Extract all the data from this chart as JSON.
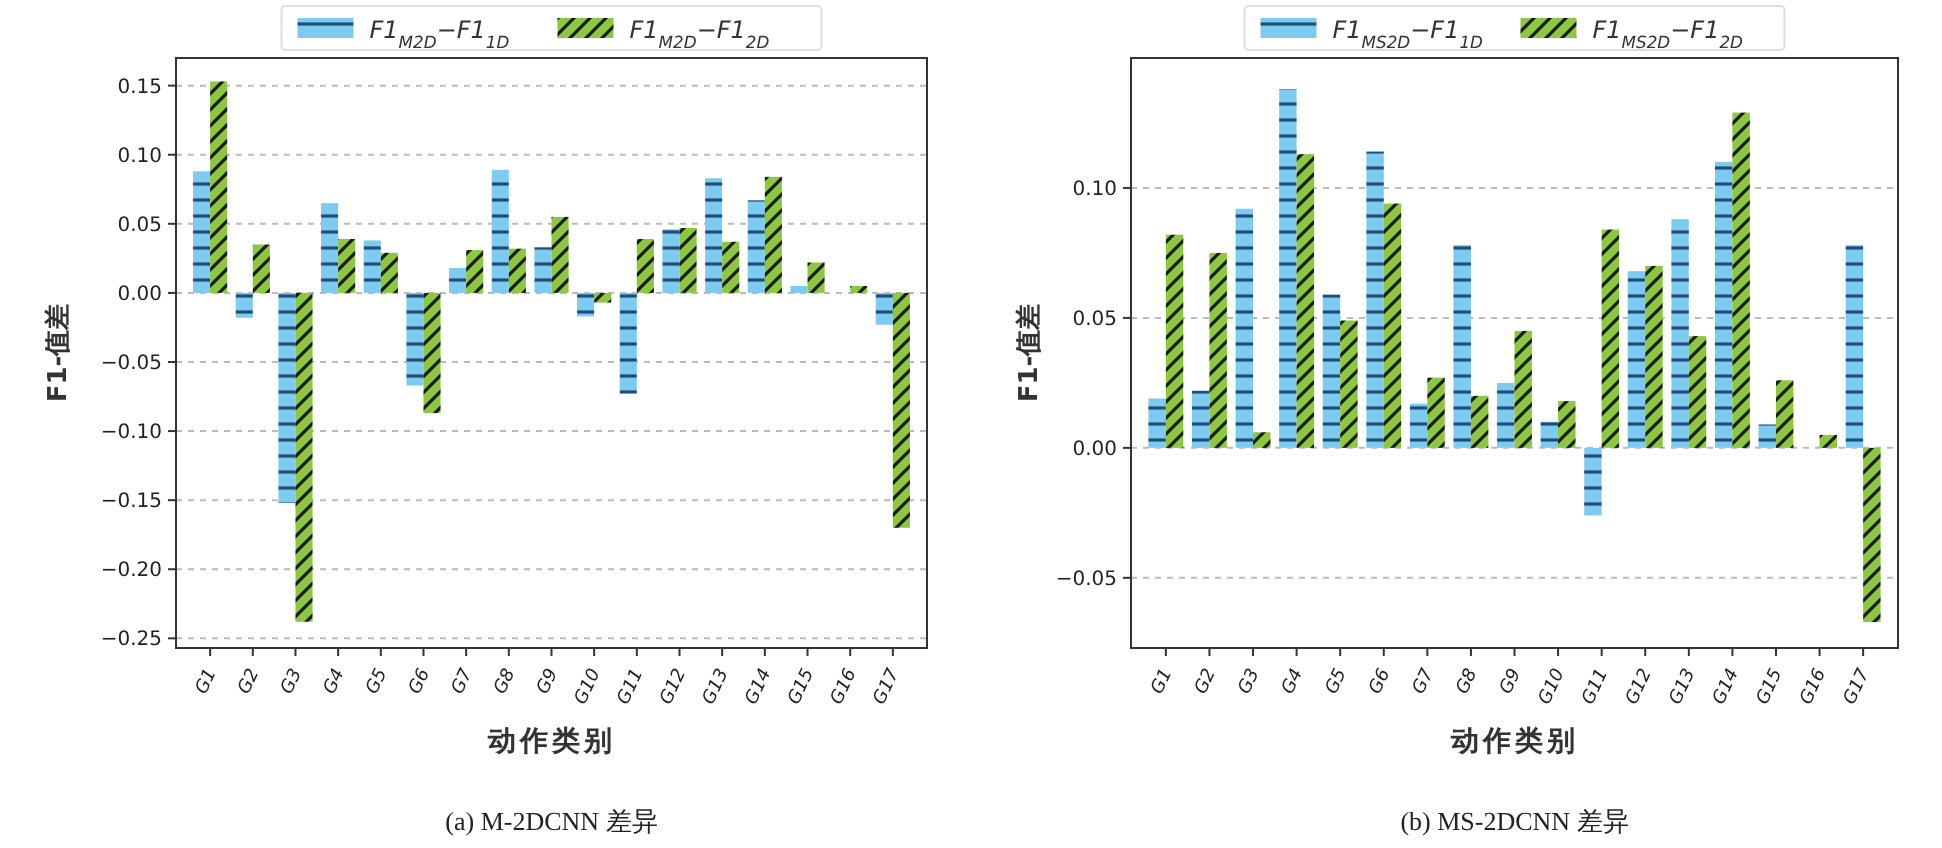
{
  "chart_data": [
    {
      "type": "bar",
      "xlabel": "动作类别",
      "ylabel": "F1-值差",
      "legend": "top",
      "grid": "y",
      "categories": [
        "G1",
        "G2",
        "G3",
        "G4",
        "G5",
        "G6",
        "G7",
        "G8",
        "G9",
        "G10",
        "G11",
        "G12",
        "G13",
        "G14",
        "G15",
        "G16",
        "G17"
      ],
      "series": [
        {
          "name": "F1$_{M2D}$−F1$_{1D}$",
          "color": "#7ecbf2",
          "values": [
            0.088,
            -0.018,
            -0.152,
            0.065,
            0.038,
            -0.067,
            0.018,
            0.089,
            0.033,
            -0.017,
            -0.073,
            0.046,
            0.083,
            0.067,
            0.005,
            0.0,
            -0.023
          ]
        },
        {
          "name": "F1$_{M2D}$−F1$_{2D}$",
          "color": "#8dc63f",
          "values": [
            0.153,
            0.035,
            -0.238,
            0.039,
            0.029,
            -0.087,
            0.031,
            0.032,
            0.055,
            -0.007,
            0.039,
            0.047,
            0.037,
            0.084,
            0.022,
            0.005,
            -0.17
          ]
        }
      ],
      "ylim": [
        -0.257,
        0.17
      ],
      "yticks": [
        {
          "value": -0.25,
          "label": "−0.25"
        },
        {
          "value": -0.2,
          "label": "−0.20"
        },
        {
          "value": -0.15,
          "label": "−0.15"
        },
        {
          "value": -0.1,
          "label": "−0.10"
        },
        {
          "value": -0.05,
          "label": "−0.05"
        },
        {
          "value": 0,
          "label": "0.00"
        },
        {
          "value": 0.05,
          "label": "0.05"
        },
        {
          "value": 0.1,
          "label": "0.10"
        },
        {
          "value": 0.15,
          "label": "0.15"
        }
      ],
      "annotations": [
        "(a) M-2DCNN 差异"
      ]
    },
    {
      "type": "bar",
      "xlabel": "动作类别",
      "ylabel": "F1-值差",
      "legend": "top",
      "grid": "y",
      "categories": [
        "G1",
        "G2",
        "G3",
        "G4",
        "G5",
        "G6",
        "G7",
        "G8",
        "G9",
        "G10",
        "G11",
        "G12",
        "G13",
        "G14",
        "G15",
        "G16",
        "G17"
      ],
      "series": [
        {
          "name": "F1$_{MS2D}$−F1$_{1D}$",
          "color": "#7ecbf2",
          "values": [
            0.019,
            0.022,
            0.092,
            0.138,
            0.059,
            0.114,
            0.017,
            0.078,
            0.025,
            0.01,
            -0.026,
            0.068,
            0.088,
            0.11,
            0.009,
            0.0,
            0.078
          ]
        },
        {
          "name": "F1$_{MS2D}$−F1$_{2D}$",
          "color": "#8dc63f",
          "values": [
            0.082,
            0.075,
            0.006,
            0.113,
            0.049,
            0.094,
            0.027,
            0.02,
            0.045,
            0.018,
            0.084,
            0.07,
            0.043,
            0.129,
            0.026,
            0.005,
            -0.067
          ]
        }
      ],
      "ylim": [
        -0.077,
        0.15
      ],
      "yticks": [
        {
          "value": -0.05,
          "label": "−0.05"
        },
        {
          "value": 0,
          "label": "0.00"
        },
        {
          "value": 0.05,
          "label": "0.05"
        },
        {
          "value": 0.1,
          "label": "0.10"
        }
      ],
      "annotations": [
        "(b) MS-2DCNN 差异"
      ]
    }
  ]
}
